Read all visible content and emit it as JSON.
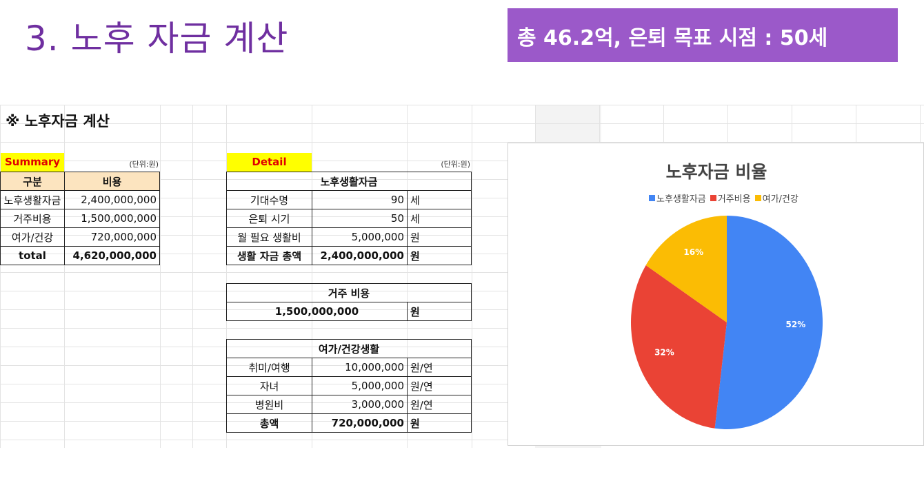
{
  "slide": {
    "title": "3. 노후 자금 계산",
    "banner": "총 46.2억, 은퇴 목표 시점  : 50세"
  },
  "sheet": {
    "title": "※ 노후자금 계산",
    "summary": {
      "label": "Summary",
      "unit": "(단위:원)",
      "headers": [
        "구분",
        "비용"
      ],
      "rows": [
        {
          "name": "노후생활자금",
          "value": "2,400,000,000"
        },
        {
          "name": "거주비용",
          "value": "1,500,000,000"
        },
        {
          "name": "여가/건강",
          "value": "720,000,000"
        }
      ],
      "total": {
        "name": "total",
        "value": "4,620,000,000"
      }
    },
    "detail": {
      "label": "Detail",
      "unit": "(단위:원)",
      "living": {
        "header": "노후생활자금",
        "rows": [
          {
            "name": "기대수명",
            "value": "90",
            "unit": "세"
          },
          {
            "name": "은퇴 시기",
            "value": "50",
            "unit": "세"
          },
          {
            "name": "월 필요 생활비",
            "value": "5,000,000",
            "unit": "원"
          }
        ],
        "total": {
          "name": "생활 자금 총액",
          "value": "2,400,000,000",
          "unit": "원"
        }
      },
      "housing": {
        "header": "거주 비용",
        "value": "1,500,000,000",
        "unit": "원"
      },
      "leisure": {
        "header": "여가/건강생활",
        "rows": [
          {
            "name": "취미/여행",
            "value": "10,000,000",
            "unit": "원/연"
          },
          {
            "name": "자녀",
            "value": "5,000,000",
            "unit": "원/연"
          },
          {
            "name": "병원비",
            "value": "3,000,000",
            "unit": "원/연"
          }
        ],
        "total": {
          "name": "총액",
          "value": "720,000,000",
          "unit": "원"
        }
      }
    }
  },
  "chart_data": {
    "type": "pie",
    "title": "노후자금 비율",
    "categories": [
      "노후생활자금",
      "거주비용",
      "여가/건강"
    ],
    "values": [
      52,
      32,
      16
    ],
    "labels": [
      "52%",
      "32%",
      "16%"
    ],
    "colors": [
      "#4285f4",
      "#ea4335",
      "#fbbc04"
    ],
    "legend": "top"
  }
}
